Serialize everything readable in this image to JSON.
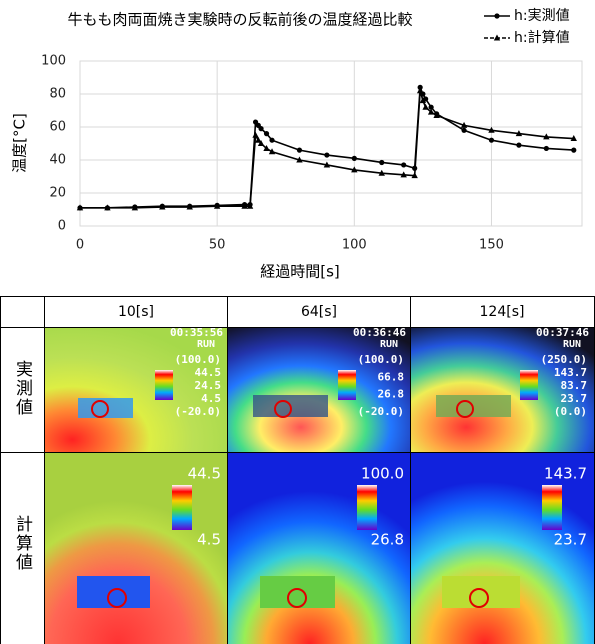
{
  "chart_data": {
    "type": "line",
    "title": "牛もも肉両面焼き実験時の反転前後の温度経過比較",
    "xlabel": "経過時間[s]",
    "ylabel": "温度[°C]",
    "x": [
      0,
      10,
      20,
      30,
      40,
      50,
      60,
      62,
      64,
      65,
      66,
      68,
      70,
      80,
      90,
      100,
      110,
      118,
      122,
      124,
      125,
      126,
      128,
      130,
      140,
      150,
      160,
      170,
      180
    ],
    "series": [
      {
        "name": "h:実測値",
        "color": "#000000",
        "marker": "circle",
        "values": [
          11,
          11,
          11.5,
          12,
          12,
          12.5,
          13,
          13,
          63,
          61,
          59,
          56,
          52,
          46,
          43,
          41,
          38.5,
          37,
          35,
          84,
          80,
          77,
          72,
          68,
          58,
          52,
          49,
          47,
          46
        ]
      },
      {
        "name": "h:計算値",
        "color": "#000000",
        "marker": "triangle",
        "values": [
          11,
          11,
          11,
          11.5,
          11.5,
          12,
          12,
          12,
          55,
          52,
          50,
          47,
          45,
          40,
          37,
          34,
          32,
          31,
          30.5,
          82,
          76,
          72,
          69,
          67,
          61,
          58,
          56,
          54,
          53
        ]
      }
    ],
    "xlim": [
      0,
      183
    ],
    "xticks": [
      0,
      50,
      100,
      150
    ],
    "ylim": [
      0,
      100
    ],
    "yticks": [
      0,
      20,
      40,
      60,
      80,
      100
    ],
    "grid": true,
    "legend": "top-right"
  },
  "table": {
    "header": [
      "10[s]",
      "64[s]",
      "124[s]"
    ],
    "rows": [
      {
        "label": "実測値",
        "cells": [
          {
            "time": "00:35:56",
            "mode": "RUN",
            "readouts": [
              "(100.0)",
              "44.5",
              "24.5",
              "4.5",
              "(-20.0)"
            ]
          },
          {
            "time": "00:36:46",
            "mode": "RUN",
            "readouts": [
              "(100.0)",
              "66.8",
              "26.8",
              "(-20.0)"
            ]
          },
          {
            "time": "00:37:46",
            "mode": "RUN",
            "readouts": [
              "(250.0)",
              "143.7",
              "83.7",
              "23.7",
              "(0.0)"
            ]
          }
        ]
      },
      {
        "label": "計算値",
        "cells": [
          {
            "max": "44.5",
            "min": "4.5"
          },
          {
            "max": "100.0",
            "min": "26.8"
          },
          {
            "max": "143.7",
            "min": "23.7"
          }
        ]
      }
    ]
  }
}
